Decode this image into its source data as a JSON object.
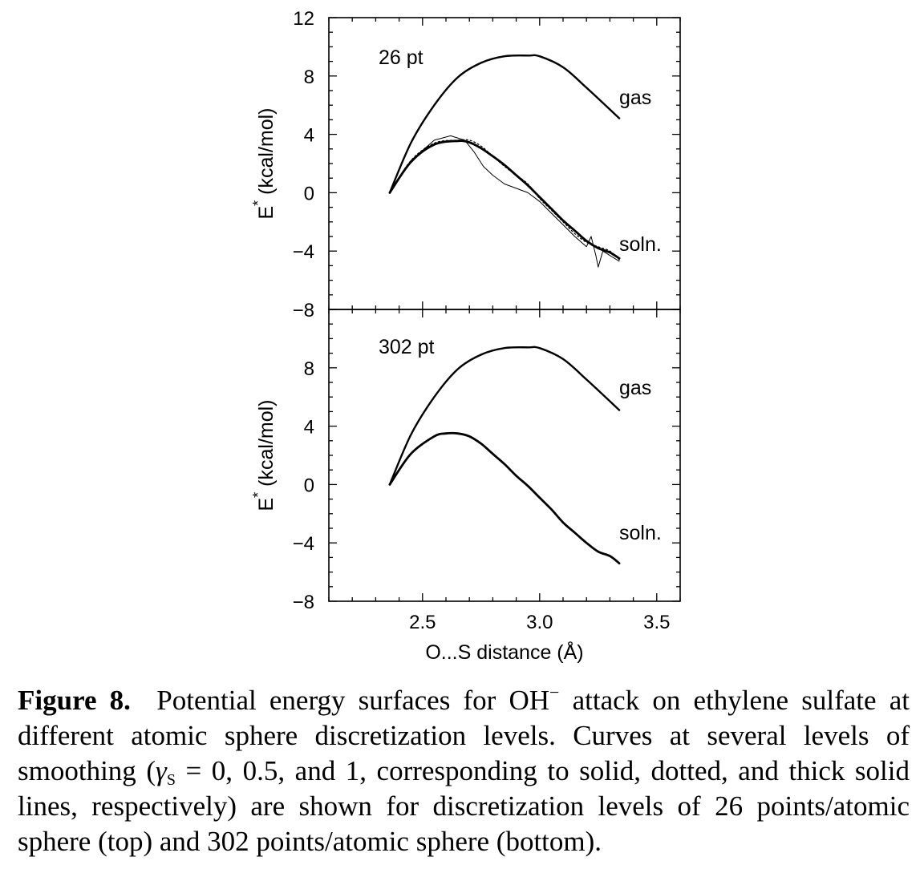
{
  "chart_data": {
    "type": "line",
    "xlabel": "O...S distance (Å)",
    "ylabel_main": "E",
    "ylabel_sup": "*",
    "ylabel_units": "(kcal/mol)",
    "xlim": [
      2.1,
      3.6
    ],
    "ylim": [
      -8,
      12
    ],
    "x_ticks": [
      2.5,
      3.0,
      3.5
    ],
    "x_tick_labels": [
      "2.5",
      "3.0",
      "3.5"
    ],
    "top_y_ticks": [
      12,
      8,
      4,
      0,
      -4,
      -8
    ],
    "top_y_tick_labels": [
      "12",
      "8",
      "4",
      "0",
      "−4",
      "−8"
    ],
    "bottom_y_ticks": [
      8,
      4,
      0,
      -4,
      -8
    ],
    "bottom_y_tick_labels": [
      "8",
      "4",
      "0",
      "−4",
      "−8"
    ],
    "panels": [
      {
        "label": "26 pt",
        "series": [
          {
            "name": "gas",
            "style": "solid",
            "x": [
              2.36,
              2.45,
              2.55,
              2.65,
              2.75,
              2.85,
              2.95,
              3.0,
              3.1,
              3.2,
              3.34
            ],
            "y": [
              0.0,
              3.4,
              6.0,
              7.9,
              8.9,
              9.35,
              9.4,
              9.35,
              8.6,
              7.2,
              5.1
            ]
          },
          {
            "name": "soln. (γS = 0)",
            "style": "solid",
            "x": [
              2.36,
              2.45,
              2.55,
              2.62,
              2.68,
              2.72,
              2.76,
              2.8,
              2.85,
              2.9,
              2.95,
              3.0,
              3.05,
              3.1,
              3.15,
              3.2,
              3.22,
              3.24,
              3.25,
              3.27,
              3.3,
              3.34
            ],
            "y": [
              0.0,
              2.2,
              3.6,
              3.9,
              3.6,
              2.8,
              1.8,
              1.2,
              0.6,
              0.3,
              0.0,
              -0.6,
              -1.4,
              -2.2,
              -3.0,
              -3.7,
              -3.0,
              -4.3,
              -5.1,
              -4.0,
              -4.3,
              -4.7
            ]
          },
          {
            "name": "soln. (γS = 0.5)",
            "style": "dotted",
            "x": [
              2.36,
              2.45,
              2.55,
              2.65,
              2.7,
              2.75,
              2.8,
              2.85,
              2.9,
              2.95,
              3.0,
              3.05,
              3.1,
              3.15,
              3.2,
              3.25,
              3.3,
              3.34
            ],
            "y": [
              0.0,
              2.2,
              3.4,
              3.6,
              3.6,
              3.2,
              2.5,
              1.8,
              1.2,
              0.6,
              -0.4,
              -1.2,
              -2.0,
              -2.8,
              -3.4,
              -3.7,
              -4.0,
              -4.6
            ]
          },
          {
            "name": "soln. (γS = 1)",
            "style": "thick",
            "x": [
              2.36,
              2.45,
              2.55,
              2.65,
              2.7,
              2.75,
              2.8,
              2.85,
              2.9,
              2.95,
              3.0,
              3.05,
              3.1,
              3.15,
              3.2,
              3.25,
              3.3,
              3.34
            ],
            "y": [
              0.0,
              2.1,
              3.3,
              3.55,
              3.45,
              3.05,
              2.5,
              1.9,
              1.2,
              0.5,
              -0.3,
              -1.1,
              -1.9,
              -2.6,
              -3.3,
              -3.8,
              -4.1,
              -4.5
            ]
          }
        ],
        "labels": {
          "gas": "gas",
          "soln": "soln."
        }
      },
      {
        "label": "302 pt",
        "series": [
          {
            "name": "gas",
            "style": "solid",
            "x": [
              2.36,
              2.45,
              2.55,
              2.65,
              2.75,
              2.85,
              2.95,
              3.0,
              3.1,
              3.2,
              3.34
            ],
            "y": [
              0.0,
              3.4,
              6.0,
              7.9,
              8.9,
              9.35,
              9.4,
              9.35,
              8.6,
              7.2,
              5.1
            ]
          },
          {
            "name": "soln.",
            "style": "thick",
            "x": [
              2.36,
              2.45,
              2.55,
              2.6,
              2.65,
              2.7,
              2.75,
              2.8,
              2.85,
              2.9,
              2.95,
              3.0,
              3.05,
              3.1,
              3.15,
              3.2,
              3.25,
              3.3,
              3.34
            ],
            "y": [
              0.0,
              2.1,
              3.3,
              3.5,
              3.5,
              3.3,
              2.8,
              2.1,
              1.4,
              0.6,
              -0.1,
              -0.9,
              -1.7,
              -2.6,
              -3.3,
              -4.0,
              -4.6,
              -4.9,
              -5.4
            ]
          }
        ],
        "labels": {
          "gas": "gas",
          "soln": "soln."
        }
      }
    ]
  },
  "caption": {
    "figure_label": "Figure 8.",
    "text_1": "Potential energy surfaces for OH",
    "superscript": "−",
    "text_2": " attack on ethylene sulfate at different atomic sphere discretization levels. Curves at several levels of smoothing (",
    "gamma": "γ",
    "gamma_sub": "S",
    "text_3": " = 0, 0.5, and 1, corresponding to solid, dotted, and thick solid lines, respectively) are shown for discretization levels of 26 points/atomic sphere (top) and 302 points/atomic sphere (bottom)."
  }
}
